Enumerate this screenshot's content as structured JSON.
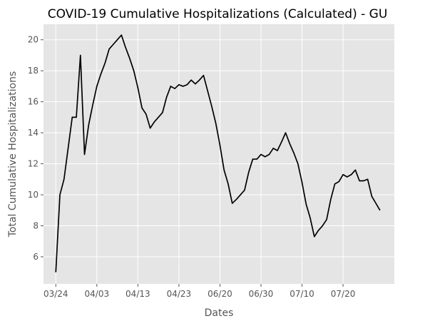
{
  "chart_data": {
    "type": "line",
    "title": "COVID-19 Cumulative Hospitalizations (Calculated) - GU",
    "xlabel": "Dates",
    "ylabel": "Total Cumulative Hospitalizations",
    "x_tick_labels": [
      "03/24",
      "04/03",
      "04/13",
      "04/23",
      "06/20",
      "06/30",
      "07/10",
      "07/20"
    ],
    "x_tick_positions": [
      0,
      10,
      20,
      30,
      40,
      50,
      60,
      70
    ],
    "y_ticks": [
      6,
      8,
      10,
      12,
      14,
      16,
      18,
      20
    ],
    "xlim": [
      -3,
      82.5
    ],
    "ylim": [
      4.25,
      21.0
    ],
    "grid": true,
    "colors": {
      "background": "#e5e5e5",
      "grid": "#ffffff",
      "line": "#000000"
    },
    "series": [
      {
        "x": [
          0,
          1,
          2,
          3,
          4,
          5,
          6,
          7,
          8,
          9,
          10,
          11,
          12,
          13,
          14,
          15,
          16,
          17,
          18,
          19,
          20,
          21,
          22,
          23,
          24,
          25,
          26,
          27,
          28,
          29,
          30,
          31,
          32,
          33,
          34,
          35,
          36,
          37,
          38,
          39,
          40,
          41,
          42,
          43,
          44,
          45,
          46,
          47,
          48,
          49,
          50,
          51,
          52,
          53,
          54,
          55,
          56,
          57,
          58,
          59,
          60,
          61,
          62,
          63,
          64,
          65,
          66,
          67,
          68,
          69,
          70,
          71,
          72,
          73,
          74,
          75,
          76,
          77,
          78,
          79
        ],
        "values": [
          5.0,
          10.0,
          11.0,
          13.0,
          15.0,
          15.0,
          19.0,
          12.6,
          14.5,
          15.8,
          17.0,
          17.8,
          18.5,
          19.4,
          19.7,
          20.0,
          20.3,
          19.5,
          18.8,
          18.0,
          16.9,
          15.6,
          15.2,
          14.3,
          14.7,
          15.0,
          15.3,
          16.3,
          17.0,
          16.85,
          17.1,
          17.0,
          17.1,
          17.4,
          17.15,
          17.4,
          17.7,
          16.7,
          15.7,
          14.6,
          13.2,
          11.6,
          10.7,
          9.45,
          9.7,
          10.0,
          10.3,
          11.45,
          12.3,
          12.3,
          12.6,
          12.45,
          12.6,
          13.0,
          12.85,
          13.4,
          14.0,
          13.3,
          12.7,
          12.0,
          10.8,
          9.4,
          8.5,
          7.3,
          7.7,
          8.0,
          8.4,
          9.7,
          10.7,
          10.85,
          11.3,
          11.15,
          11.3,
          11.6,
          10.9,
          10.9,
          11.0,
          9.9,
          9.45,
          9.0
        ]
      }
    ]
  }
}
